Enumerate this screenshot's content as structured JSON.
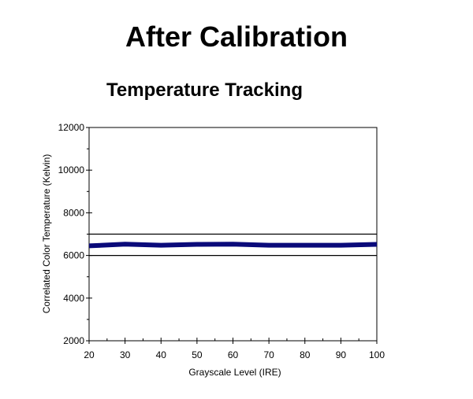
{
  "page_title": "After Calibration",
  "chart_data": {
    "type": "line",
    "title": "Temperature Tracking",
    "xlabel": "Grayscale Level (IRE)",
    "ylabel": "Correlated Color Temperature (Kelvin)",
    "xlim": [
      20,
      100
    ],
    "ylim": [
      2000,
      12000
    ],
    "x_ticks": [
      20,
      30,
      40,
      50,
      60,
      70,
      80,
      90,
      100
    ],
    "y_ticks": [
      2000,
      4000,
      6000,
      8000,
      10000,
      12000
    ],
    "grid": false,
    "reference_lines": [
      7000,
      6000
    ],
    "series": [
      {
        "color": "#0a0a7a",
        "x": [
          20,
          30,
          40,
          50,
          60,
          70,
          80,
          90,
          100
        ],
        "values": [
          6450,
          6530,
          6480,
          6520,
          6530,
          6480,
          6480,
          6480,
          6520
        ]
      }
    ]
  }
}
